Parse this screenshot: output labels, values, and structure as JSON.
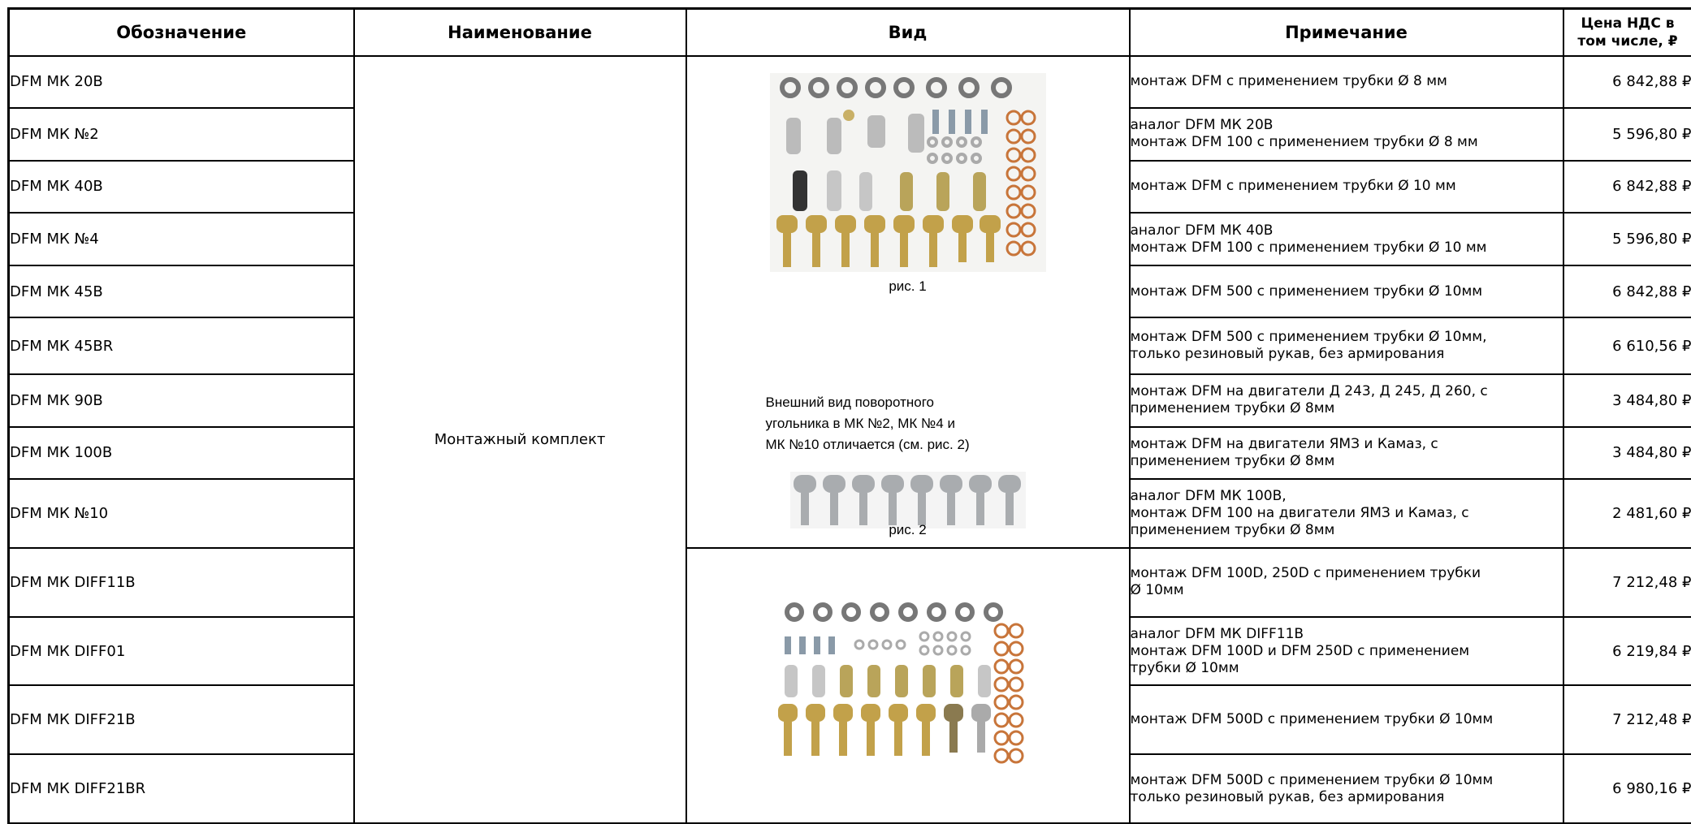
{
  "headers": {
    "code": "Обозначение",
    "name": "Наименование",
    "view": "Вид",
    "note": "Примечание",
    "price_line1": "Цена НДС в",
    "price_line2": "том числе, ₽"
  },
  "group_name": "Монтажный комплект",
  "view": {
    "caption1": "рис. 1",
    "desc_line1": "Внешний вид поворотного",
    "desc_line2": "угольника в МК №2, МК №4 и",
    "desc_line3": "МК №10  отличается (см. рис. 2)",
    "caption2": "рис. 2",
    "photo1": "mounting-kit-parts-photo",
    "photo2": "swivel-fittings-photo",
    "photo3": "diff-mounting-kit-parts-photo"
  },
  "rows": [
    {
      "code": "DFM МК 20В",
      "note": [
        "монтаж DFM с применением трубки Ø 8 мм"
      ],
      "price": "6 842,88 ₽"
    },
    {
      "code": "DFM МК №2",
      "note": [
        "аналог DFM МК 20В",
        "монтаж DFM 100 с применением трубки Ø 8 мм"
      ],
      "price": "5 596,80 ₽"
    },
    {
      "code": "DFM МК 40В",
      "note": [
        "монтаж DFM с применением трубки Ø 10 мм"
      ],
      "price": "6 842,88 ₽"
    },
    {
      "code": "DFM МК №4",
      "note": [
        "аналог DFM МК 40В",
        "монтаж DFM 100 с применением трубки Ø 10 мм"
      ],
      "price": "5 596,80 ₽"
    },
    {
      "code": "DFM МК 45В",
      "note": [
        "монтаж DFM 500 с применением трубки Ø 10мм"
      ],
      "price": "6 842,88 ₽"
    },
    {
      "code": "DFM МК 45BR",
      "note": [
        "монтаж DFM 500 с применением трубки Ø 10мм,",
        "только резиновый рукав, без армирования"
      ],
      "price": "6 610,56 ₽"
    },
    {
      "code": "DFM МК 90В",
      "note": [
        "монтаж DFM на двигатели Д 243, Д 245, Д 260, с",
        "применением трубки Ø 8мм"
      ],
      "price": "3 484,80 ₽"
    },
    {
      "code": "DFM МК 100В",
      "note": [
        "монтаж DFM на двигатели ЯМЗ и Камаз, с",
        "применением трубки Ø 8мм"
      ],
      "price": "3 484,80 ₽"
    },
    {
      "code": "DFM МК №10",
      "note": [
        "аналог DFM МК 100В,",
        "монтаж DFM 100 на двигатели ЯМЗ и Камаз, с",
        "применением трубки Ø 8мм"
      ],
      "price": "2 481,60 ₽"
    },
    {
      "code": "DFM МК DIFF11В",
      "note": [
        "монтаж DFM 100D, 250D с применением трубки",
        "Ø 10мм"
      ],
      "price": "7 212,48 ₽"
    },
    {
      "code": "DFM МК DIFF01",
      "note": [
        "аналог DFM МК DIFF11В",
        "монтаж DFM 100D и DFM 250D с применением",
        "трубки Ø 10мм"
      ],
      "price": "6 219,84 ₽"
    },
    {
      "code": "DFM МК DIFF21В",
      "note": [
        "монтаж DFM 500D с применением  трубки  Ø 10мм"
      ],
      "price": "7 212,48 ₽"
    },
    {
      "code": "DFM МК DIFF21BR",
      "note": [
        "монтаж DFM 500D с применением трубки Ø 10мм",
        "только резиновый рукав, без армирования"
      ],
      "price": "6 980,16 ₽"
    }
  ]
}
